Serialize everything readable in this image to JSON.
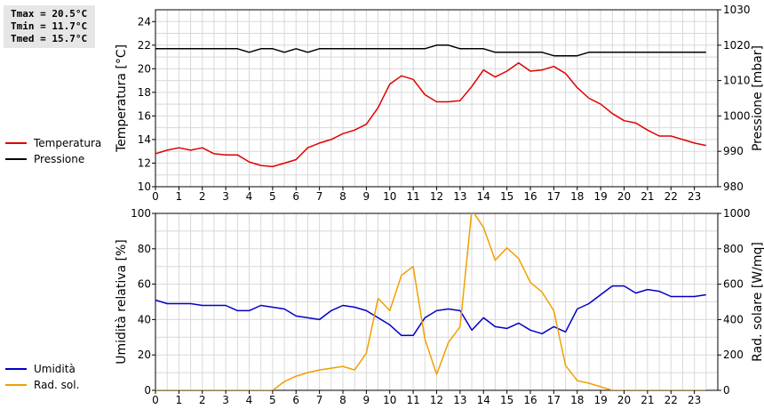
{
  "stats": {
    "tmax": "Tmax = 20.5°C",
    "tmin": "Tmin = 11.7°C",
    "tmed": "Tmed = 15.7°C"
  },
  "colors": {
    "temperature": "#e00000",
    "pressure": "#000000",
    "humidity": "#0000c8",
    "radiation": "#f0a000",
    "grid": "#d8d8d8"
  },
  "chart_data": [
    {
      "type": "line",
      "xlabel": "",
      "x_ticks": [
        "0",
        "1",
        "2",
        "3",
        "4",
        "5",
        "6",
        "7",
        "8",
        "9",
        "10",
        "11",
        "12",
        "13",
        "14",
        "15",
        "16",
        "17",
        "18",
        "19",
        "20",
        "21",
        "22",
        "23"
      ],
      "xlim": [
        0,
        24
      ],
      "ylabel_left": "Temperatura [°C]",
      "ylim_left": [
        10,
        25
      ],
      "yticks_left": [
        10,
        12,
        14,
        16,
        18,
        20,
        22,
        24
      ],
      "ylabel_right": "Pressione [mbar]",
      "ylim_right": [
        980,
        1030
      ],
      "yticks_right": [
        980,
        990,
        1000,
        1010,
        1020,
        1030
      ],
      "grid": true,
      "legend_position": "left",
      "series": [
        {
          "name": "Temperatura",
          "axis": "left",
          "x": [
            0,
            0.5,
            1,
            1.5,
            2,
            2.5,
            3,
            3.5,
            4,
            4.5,
            5,
            5.5,
            6,
            6.5,
            7,
            7.5,
            8,
            8.5,
            9,
            9.5,
            10,
            10.5,
            11,
            11.5,
            12,
            12.5,
            13,
            13.5,
            14,
            14.5,
            15,
            15.5,
            16,
            16.5,
            17,
            17.5,
            18,
            18.5,
            19,
            19.5,
            20,
            20.5,
            21,
            21.5,
            22,
            22.5,
            23,
            23.5
          ],
          "values": [
            12.8,
            13.1,
            13.3,
            13.1,
            13.3,
            12.8,
            12.7,
            12.7,
            12.1,
            11.8,
            11.7,
            12.0,
            12.3,
            13.3,
            13.7,
            14.0,
            14.5,
            14.8,
            15.3,
            16.7,
            18.7,
            19.4,
            19.1,
            17.8,
            17.2,
            17.2,
            17.3,
            18.5,
            19.9,
            19.3,
            19.8,
            20.5,
            19.8,
            19.9,
            20.2,
            19.6,
            18.4,
            17.5,
            17.0,
            16.2,
            15.6,
            15.4,
            14.8,
            14.3,
            14.3,
            14.0,
            13.7,
            13.5
          ]
        },
        {
          "name": "Pressione",
          "axis": "right",
          "x": [
            0,
            0.5,
            1,
            1.5,
            2,
            2.5,
            3,
            3.5,
            4,
            4.5,
            5,
            5.5,
            6,
            6.5,
            7,
            7.5,
            8,
            8.5,
            9,
            9.5,
            10,
            10.5,
            11,
            11.5,
            12,
            12.5,
            13,
            13.5,
            14,
            14.5,
            15,
            15.5,
            16,
            16.5,
            17,
            17.5,
            18,
            18.5,
            19,
            19.5,
            20,
            20.5,
            21,
            21.5,
            22,
            22.5,
            23,
            23.5
          ],
          "values": [
            1019,
            1019,
            1019,
            1019,
            1019,
            1019,
            1019,
            1019,
            1018,
            1019,
            1019,
            1018,
            1019,
            1018,
            1019,
            1019,
            1019,
            1019,
            1019,
            1019,
            1019,
            1019,
            1019,
            1019,
            1020,
            1020,
            1019,
            1019,
            1019,
            1018,
            1018,
            1018,
            1018,
            1018,
            1017,
            1017,
            1017,
            1018,
            1018,
            1018,
            1018,
            1018,
            1018,
            1018,
            1018,
            1018,
            1018,
            1018
          ]
        }
      ]
    },
    {
      "type": "line",
      "x_ticks": [
        "0",
        "1",
        "2",
        "3",
        "4",
        "5",
        "6",
        "7",
        "8",
        "9",
        "10",
        "11",
        "12",
        "13",
        "14",
        "15",
        "16",
        "17",
        "18",
        "19",
        "20",
        "21",
        "22",
        "23"
      ],
      "xlim": [
        0,
        24
      ],
      "ylabel_left": "Umidità relativa [%]",
      "ylim_left": [
        0,
        100
      ],
      "yticks_left": [
        0,
        20,
        40,
        60,
        80,
        100
      ],
      "ylabel_right": "Rad. solare [W/mq]",
      "ylim_right": [
        0,
        1000
      ],
      "yticks_right": [
        0,
        200,
        400,
        600,
        800,
        1000
      ],
      "grid": true,
      "legend_position": "left",
      "series": [
        {
          "name": "Umidità",
          "axis": "left",
          "x": [
            0,
            0.5,
            1,
            1.5,
            2,
            2.5,
            3,
            3.5,
            4,
            4.5,
            5,
            5.5,
            6,
            6.5,
            7,
            7.5,
            8,
            8.5,
            9,
            9.5,
            10,
            10.5,
            11,
            11.5,
            12,
            12.5,
            13,
            13.5,
            14,
            14.5,
            15,
            15.5,
            16,
            16.5,
            17,
            17.5,
            18,
            18.5,
            19,
            19.5,
            20,
            20.5,
            21,
            21.5,
            22,
            22.5,
            23,
            23.5
          ],
          "values": [
            51,
            49,
            49,
            49,
            48,
            48,
            48,
            45,
            45,
            48,
            47,
            46,
            42,
            41,
            40,
            45,
            48,
            47,
            45,
            41,
            37,
            31,
            31,
            41,
            45,
            46,
            45,
            34,
            41,
            36,
            35,
            38,
            34,
            32,
            36,
            33,
            46,
            49,
            54,
            59,
            59,
            55,
            57,
            56,
            53,
            53,
            53,
            54
          ]
        },
        {
          "name": "Rad. sol.",
          "axis": "right",
          "x": [
            0,
            0.5,
            1,
            1.5,
            2,
            2.5,
            3,
            3.5,
            4,
            4.5,
            5,
            5.5,
            6,
            6.5,
            7,
            7.5,
            8,
            8.5,
            9,
            9.5,
            10,
            10.5,
            11,
            11.5,
            12,
            12.5,
            13,
            13.5,
            14,
            14.5,
            15,
            15.5,
            16,
            16.5,
            17,
            17.5,
            18,
            18.5,
            19,
            19.5,
            20,
            20.5,
            21,
            21.5,
            22,
            22.5,
            23,
            23.5
          ],
          "values": [
            0,
            0,
            0,
            0,
            0,
            0,
            0,
            0,
            0,
            0,
            0,
            50,
            80,
            100,
            115,
            125,
            135,
            115,
            210,
            520,
            450,
            650,
            700,
            290,
            90,
            270,
            360,
            1020,
            920,
            735,
            805,
            745,
            610,
            555,
            450,
            140,
            55,
            40,
            20,
            0,
            0,
            0,
            0,
            0,
            0,
            0,
            0,
            0
          ]
        }
      ]
    }
  ]
}
